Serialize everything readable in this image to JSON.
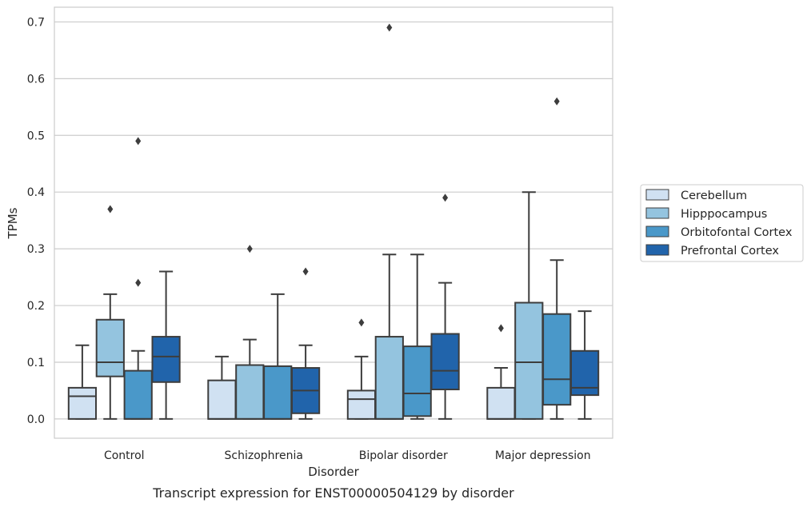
{
  "chart_data": {
    "type": "box",
    "caption": "Transcript expression for ENST00000504129 by disorder",
    "xlabel": "Disorder",
    "ylabel": "TPMs",
    "ylim": [
      -0.034,
      0.726
    ],
    "yticks": [
      "0.0",
      "0.1",
      "0.2",
      "0.3",
      "0.4",
      "0.5",
      "0.6",
      "0.7"
    ],
    "ytick_values": [
      0,
      0.1,
      0.2,
      0.3,
      0.4,
      0.5,
      0.6,
      0.7
    ],
    "grid": "horizontal",
    "legend_position": "right",
    "categories": [
      "Control",
      "Schizophrenia",
      "Bipolar disorder",
      "Major depression"
    ],
    "series": [
      {
        "name": "Cerebellum",
        "color": "#d0e1f2",
        "boxes": [
          {
            "whisker_low": 0,
            "q1": 0,
            "median": 0.04,
            "q3": 0.055,
            "whisker_high": 0.13,
            "outliers": []
          },
          {
            "whisker_low": 0,
            "q1": 0,
            "median": 0,
            "q3": 0.068,
            "whisker_high": 0.11,
            "outliers": []
          },
          {
            "whisker_low": 0,
            "q1": 0,
            "median": 0.035,
            "q3": 0.05,
            "whisker_high": 0.11,
            "outliers": [
              0.17
            ]
          },
          {
            "whisker_low": 0,
            "q1": 0,
            "median": 0,
            "q3": 0.055,
            "whisker_high": 0.09,
            "outliers": [
              0.16
            ]
          }
        ]
      },
      {
        "name": "Hipppocampus",
        "color": "#94c4df",
        "boxes": [
          {
            "whisker_low": 0,
            "q1": 0.075,
            "median": 0.1,
            "q3": 0.175,
            "whisker_high": 0.22,
            "outliers": [
              0.37
            ]
          },
          {
            "whisker_low": 0,
            "q1": 0,
            "median": 0,
            "q3": 0.095,
            "whisker_high": 0.14,
            "outliers": [
              0.3
            ]
          },
          {
            "whisker_low": 0,
            "q1": 0,
            "median": 0,
            "q3": 0.145,
            "whisker_high": 0.29,
            "outliers": [
              0.69
            ]
          },
          {
            "whisker_low": 0,
            "q1": 0,
            "median": 0.1,
            "q3": 0.205,
            "whisker_high": 0.4,
            "outliers": []
          }
        ]
      },
      {
        "name": "Orbitofontal Cortex",
        "color": "#4a98c9",
        "boxes": [
          {
            "whisker_low": 0,
            "q1": 0,
            "median": 0,
            "q3": 0.085,
            "whisker_high": 0.12,
            "outliers": [
              0.24,
              0.49
            ]
          },
          {
            "whisker_low": 0,
            "q1": 0,
            "median": 0,
            "q3": 0.093,
            "whisker_high": 0.22,
            "outliers": []
          },
          {
            "whisker_low": 0,
            "q1": 0.005,
            "median": 0.045,
            "q3": 0.128,
            "whisker_high": 0.29,
            "outliers": []
          },
          {
            "whisker_low": 0,
            "q1": 0.025,
            "median": 0.07,
            "q3": 0.185,
            "whisker_high": 0.28,
            "outliers": [
              0.56
            ]
          }
        ]
      },
      {
        "name": "Prefrontal Cortex",
        "color": "#2164ab",
        "boxes": [
          {
            "whisker_low": 0,
            "q1": 0.065,
            "median": 0.11,
            "q3": 0.145,
            "whisker_high": 0.26,
            "outliers": []
          },
          {
            "whisker_low": 0,
            "q1": 0.01,
            "median": 0.05,
            "q3": 0.09,
            "whisker_high": 0.13,
            "outliers": [
              0.26
            ]
          },
          {
            "whisker_low": 0,
            "q1": 0.052,
            "median": 0.085,
            "q3": 0.15,
            "whisker_high": 0.24,
            "outliers": [
              0.39
            ]
          },
          {
            "whisker_low": 0,
            "q1": 0.042,
            "median": 0.055,
            "q3": 0.12,
            "whisker_high": 0.19,
            "outliers": []
          }
        ]
      }
    ]
  }
}
